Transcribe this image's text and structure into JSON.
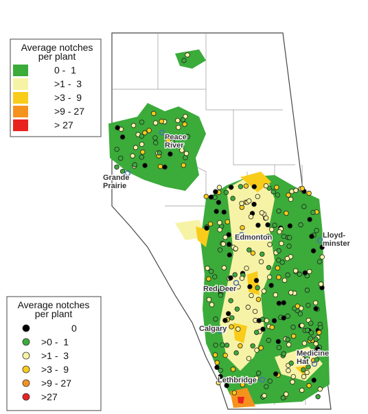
{
  "legends": [
    {
      "title": [
        "Average notches",
        "per plant"
      ],
      "items": [
        {
          "label": "0 -  1",
          "color": "#3bab3a"
        },
        {
          "label": ">1 -  3",
          "color": "#f7f3a6"
        },
        {
          "label": ">3 -  9",
          "color": "#f9cc1a"
        },
        {
          "label": ">9 - 27",
          "color": "#f5921e"
        },
        {
          "label": "> 27",
          "color": "#e8231f"
        }
      ]
    },
    {
      "title": [
        "Average notches",
        "per plant"
      ],
      "items": [
        {
          "label": "0",
          "color": "#000000"
        },
        {
          "label": ">0 -  1",
          "color": "#3bab3a"
        },
        {
          "label": ">1 -  3",
          "color": "#f7f3a6"
        },
        {
          "label": ">3 -  9",
          "color": "#f9cc1a"
        },
        {
          "label": ">9 - 27",
          "color": "#f5921e"
        },
        {
          "label": ">27",
          "color": "#e8231f"
        }
      ]
    }
  ],
  "cities": [
    {
      "lines": [
        "Peace",
        "River"
      ]
    },
    {
      "lines": [
        "Grande",
        "Prairie"
      ]
    },
    {
      "lines": [
        "Edmonton"
      ]
    },
    {
      "lines": [
        "Lloyd-",
        "minster"
      ]
    },
    {
      "lines": [
        "Red Deer"
      ]
    },
    {
      "lines": [
        "Calgary"
      ]
    },
    {
      "lines": [
        "Medicine",
        "Hat"
      ]
    },
    {
      "lines": [
        "Lethbridge"
      ]
    }
  ]
}
